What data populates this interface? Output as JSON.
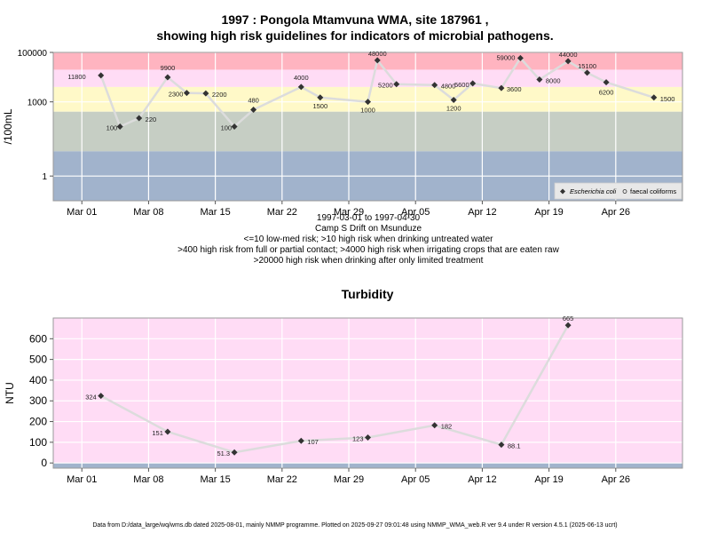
{
  "header": {
    "title_line1": "1997 : Pongola Mtamvuna WMA, site 187961 ,",
    "title_line2": "showing high risk guidelines for indicators of microbial pathogens."
  },
  "subtitle": {
    "date_range": "1997-03-01 to 1997-04-30",
    "site_name": "Camp S Drift on Msunduze",
    "guideline_1": "<=10 low-med risk; >10 high risk when drinking untreated water",
    "guideline_2": ">400 high risk from full or partial contact; >4000 high risk when irrigating crops that are eaten raw",
    "guideline_3": ">20000 high risk when drinking after only limited treatment"
  },
  "footer": "Data from D:/data_large/wq/wms.db dated 2025-08-01, mainly NMMP programme. Plotted on 2025-09-27 09:01:48 using NMMP_WMA_web.R ver 9.4 under R version 4.5.1 (2025-06-13 ucrt)",
  "colors": {
    "band_red": "#ffb4c0",
    "band_pink": "#ffdcf5",
    "band_yellow": "#fff9c8",
    "band_grey": "#c6cec4",
    "band_blue": "#a1b3cc",
    "line": "#dcdcdc",
    "marker": "#333333"
  },
  "chart_data": [
    {
      "type": "line",
      "scale": "log10",
      "ylabel": "/100mL",
      "xlim": [
        "1997-02-26",
        "1997-05-03"
      ],
      "ylim": [
        0.1,
        100000
      ],
      "x_ticks": [
        "Mar 01",
        "Mar 08",
        "Mar 15",
        "Mar 22",
        "Mar 29",
        "Apr 05",
        "Apr 12",
        "Apr 19",
        "Apr 26"
      ],
      "y_ticks": [
        "1",
        "1000",
        "100000"
      ],
      "grid": true,
      "legend_position": "bottom-right",
      "bands": [
        {
          "from": 20000,
          "to": 100000,
          "color": "#ffb4c0"
        },
        {
          "from": 4000,
          "to": 20000,
          "color": "#ffdcf5"
        },
        {
          "from": 400,
          "to": 4000,
          "color": "#fff9c8"
        },
        {
          "from": 10,
          "to": 400,
          "color": "#c6cec4"
        },
        {
          "from": 0.1,
          "to": 10,
          "color": "#a1b3cc"
        }
      ],
      "series": [
        {
          "name": "Escherichia coli",
          "marker": "filled-diamond",
          "points": [
            {
              "x": "1997-03-03",
              "y": 11800,
              "label": "11800"
            },
            {
              "x": "1997-03-05",
              "y": 100,
              "label": "100"
            },
            {
              "x": "1997-03-07",
              "y": 220,
              "label": "220"
            },
            {
              "x": "1997-03-10",
              "y": 9900,
              "label": "9900"
            },
            {
              "x": "1997-03-12",
              "y": 2300,
              "label": "2300"
            },
            {
              "x": "1997-03-14",
              "y": 2200,
              "label": "2200"
            },
            {
              "x": "1997-03-17",
              "y": 100,
              "label": "100"
            },
            {
              "x": "1997-03-19",
              "y": 480,
              "label": "480"
            },
            {
              "x": "1997-03-24",
              "y": 4000,
              "label": "4000"
            },
            {
              "x": "1997-03-26",
              "y": 1500,
              "label": "1500"
            },
            {
              "x": "1997-03-31",
              "y": 1000,
              "label": "1000"
            },
            {
              "x": "1997-04-01",
              "y": 48000,
              "label": "48000"
            },
            {
              "x": "1997-04-03",
              "y": 5200,
              "label": "5200"
            },
            {
              "x": "1997-04-07",
              "y": 4800,
              "label": "4800"
            },
            {
              "x": "1997-04-09",
              "y": 1200,
              "label": "1200"
            },
            {
              "x": "1997-04-11",
              "y": 5600,
              "label": "5600"
            },
            {
              "x": "1997-04-14",
              "y": 3600,
              "label": "3600"
            },
            {
              "x": "1997-04-16",
              "y": 59000,
              "label": "59000"
            },
            {
              "x": "1997-04-18",
              "y": 8000,
              "label": "8000"
            },
            {
              "x": "1997-04-21",
              "y": 44000,
              "label": "44000"
            },
            {
              "x": "1997-04-23",
              "y": 15100,
              "label": "15100"
            },
            {
              "x": "1997-04-25",
              "y": 6200,
              "label": "6200"
            },
            {
              "x": "1997-04-30",
              "y": 1500,
              "label": "1500"
            }
          ]
        },
        {
          "name": "faecal coliforms",
          "marker": "open-circle",
          "points": []
        }
      ]
    },
    {
      "type": "line",
      "title": "Turbidity",
      "ylabel": "NTU",
      "xlim": [
        "1997-02-26",
        "1997-05-03"
      ],
      "ylim": [
        -25,
        700
      ],
      "x_ticks": [
        "Mar 01",
        "Mar 08",
        "Mar 15",
        "Mar 22",
        "Mar 29",
        "Apr 05",
        "Apr 12",
        "Apr 19",
        "Apr 26"
      ],
      "y_ticks": [
        0,
        100,
        200,
        300,
        400,
        500,
        600
      ],
      "grid": true,
      "series": [
        {
          "marker": "filled-diamond",
          "points": [
            {
              "x": "1997-03-03",
              "y": 324,
              "label": "324"
            },
            {
              "x": "1997-03-10",
              "y": 151,
              "label": "151"
            },
            {
              "x": "1997-03-17",
              "y": 51.3,
              "label": "51.3"
            },
            {
              "x": "1997-03-24",
              "y": 107,
              "label": "107"
            },
            {
              "x": "1997-03-31",
              "y": 123,
              "label": "123"
            },
            {
              "x": "1997-04-07",
              "y": 182,
              "label": "182"
            },
            {
              "x": "1997-04-14",
              "y": 88.1,
              "label": "88.1"
            },
            {
              "x": "1997-04-21",
              "y": 665,
              "label": "665"
            }
          ]
        }
      ]
    }
  ]
}
